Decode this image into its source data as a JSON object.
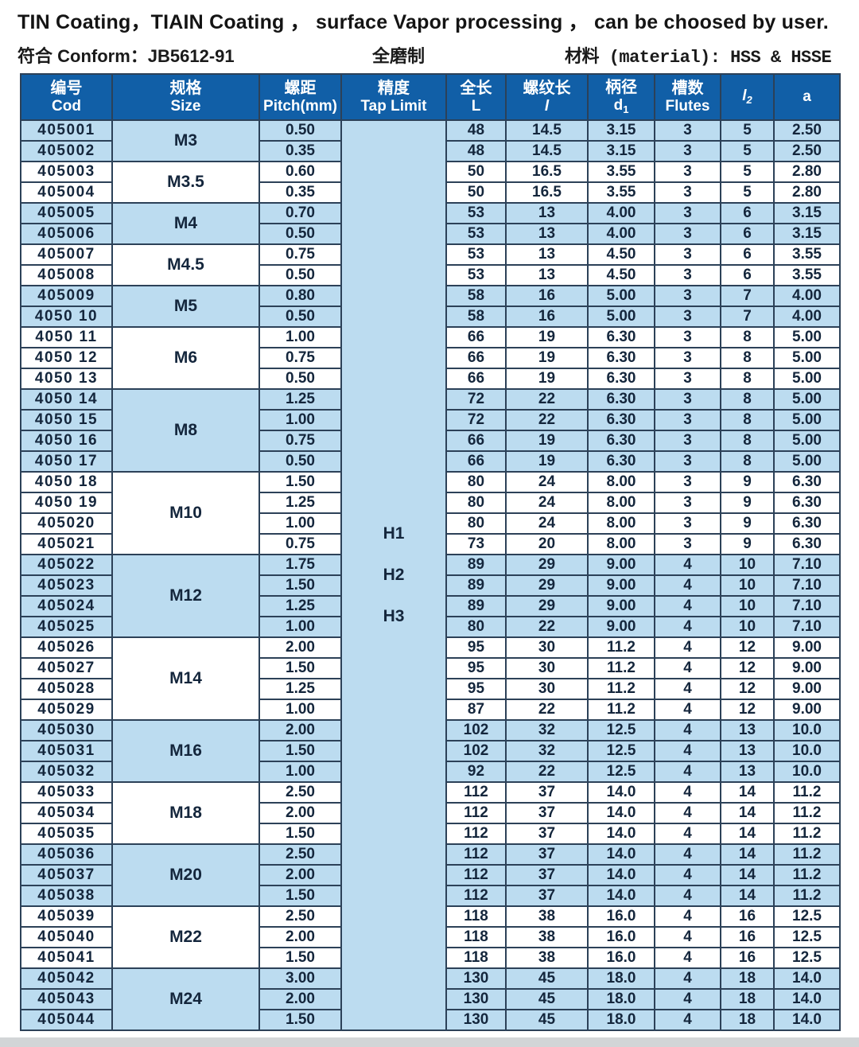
{
  "page_header": {
    "line1": "TIN Coating，TIAIN Coating ， surface Vapor processing ， can be choosed by user.",
    "conform": "符合 Conform：JB5612-91",
    "center": "全磨制",
    "material": "材料 (material): HSS & HSSE"
  },
  "colors": {
    "header_bg": "#115fa7",
    "header_text": "#ffffff",
    "row_blue": "#bcdcf0",
    "row_white": "#ffffff",
    "border": "#2c4158",
    "body_text": "#14263c"
  },
  "table": {
    "columns": [
      {
        "key": "code",
        "cn": "编号",
        "en": "Cod",
        "sub": "",
        "italic": false
      },
      {
        "key": "size",
        "cn": "规格",
        "en": "Size",
        "sub": "",
        "italic": false
      },
      {
        "key": "pitch",
        "cn": "螺距",
        "en": "Pitch(mm)",
        "sub": "",
        "italic": false
      },
      {
        "key": "tap_limit",
        "cn": "精度",
        "en": "Tap Limit",
        "sub": "",
        "italic": false
      },
      {
        "key": "L",
        "cn": "全长",
        "en": "L",
        "sub": "",
        "italic": false
      },
      {
        "key": "l",
        "cn": "螺纹长",
        "en": "l",
        "sub": "",
        "italic": true
      },
      {
        "key": "d1",
        "cn": "柄径",
        "en": "d",
        "sub": "1",
        "italic": false
      },
      {
        "key": "flutes",
        "cn": "槽数",
        "en": "Flutes",
        "sub": "",
        "italic": false
      },
      {
        "key": "l2",
        "cn": "",
        "en": "l",
        "sub": "2",
        "italic": true
      },
      {
        "key": "a",
        "cn": "",
        "en": "a",
        "sub": "",
        "italic": false
      }
    ],
    "tap_limit_values": [
      "H1",
      "H2",
      "H3"
    ],
    "groups": [
      {
        "size": "M3",
        "rows": [
          {
            "code": "405001",
            "pitch": "0.50",
            "L": "48",
            "l": "14.5",
            "d1": "3.15",
            "flutes": "3",
            "l2": "5",
            "a": "2.50"
          },
          {
            "code": "405002",
            "pitch": "0.35",
            "L": "48",
            "l": "14.5",
            "d1": "3.15",
            "flutes": "3",
            "l2": "5",
            "a": "2.50"
          }
        ]
      },
      {
        "size": "M3.5",
        "rows": [
          {
            "code": "405003",
            "pitch": "0.60",
            "L": "50",
            "l": "16.5",
            "d1": "3.55",
            "flutes": "3",
            "l2": "5",
            "a": "2.80"
          },
          {
            "code": "405004",
            "pitch": "0.35",
            "L": "50",
            "l": "16.5",
            "d1": "3.55",
            "flutes": "3",
            "l2": "5",
            "a": "2.80"
          }
        ]
      },
      {
        "size": "M4",
        "rows": [
          {
            "code": "405005",
            "pitch": "0.70",
            "L": "53",
            "l": "13",
            "d1": "4.00",
            "flutes": "3",
            "l2": "6",
            "a": "3.15"
          },
          {
            "code": "405006",
            "pitch": "0.50",
            "L": "53",
            "l": "13",
            "d1": "4.00",
            "flutes": "3",
            "l2": "6",
            "a": "3.15"
          }
        ]
      },
      {
        "size": "M4.5",
        "rows": [
          {
            "code": "405007",
            "pitch": "0.75",
            "L": "53",
            "l": "13",
            "d1": "4.50",
            "flutes": "3",
            "l2": "6",
            "a": "3.55"
          },
          {
            "code": "405008",
            "pitch": "0.50",
            "L": "53",
            "l": "13",
            "d1": "4.50",
            "flutes": "3",
            "l2": "6",
            "a": "3.55"
          }
        ]
      },
      {
        "size": "M5",
        "rows": [
          {
            "code": "405009",
            "pitch": "0.80",
            "L": "58",
            "l": "16",
            "d1": "5.00",
            "flutes": "3",
            "l2": "7",
            "a": "4.00"
          },
          {
            "code": "4050 10",
            "pitch": "0.50",
            "L": "58",
            "l": "16",
            "d1": "5.00",
            "flutes": "3",
            "l2": "7",
            "a": "4.00"
          }
        ]
      },
      {
        "size": "M6",
        "rows": [
          {
            "code": "4050 11",
            "pitch": "1.00",
            "L": "66",
            "l": "19",
            "d1": "6.30",
            "flutes": "3",
            "l2": "8",
            "a": "5.00"
          },
          {
            "code": "4050 12",
            "pitch": "0.75",
            "L": "66",
            "l": "19",
            "d1": "6.30",
            "flutes": "3",
            "l2": "8",
            "a": "5.00"
          },
          {
            "code": "4050 13",
            "pitch": "0.50",
            "L": "66",
            "l": "19",
            "d1": "6.30",
            "flutes": "3",
            "l2": "8",
            "a": "5.00"
          }
        ]
      },
      {
        "size": "M8",
        "rows": [
          {
            "code": "4050 14",
            "pitch": "1.25",
            "L": "72",
            "l": "22",
            "d1": "6.30",
            "flutes": "3",
            "l2": "8",
            "a": "5.00"
          },
          {
            "code": "4050 15",
            "pitch": "1.00",
            "L": "72",
            "l": "22",
            "d1": "6.30",
            "flutes": "3",
            "l2": "8",
            "a": "5.00"
          },
          {
            "code": "4050 16",
            "pitch": "0.75",
            "L": "66",
            "l": "19",
            "d1": "6.30",
            "flutes": "3",
            "l2": "8",
            "a": "5.00"
          },
          {
            "code": "4050 17",
            "pitch": "0.50",
            "L": "66",
            "l": "19",
            "d1": "6.30",
            "flutes": "3",
            "l2": "8",
            "a": "5.00"
          }
        ]
      },
      {
        "size": "M10",
        "rows": [
          {
            "code": "4050 18",
            "pitch": "1.50",
            "L": "80",
            "l": "24",
            "d1": "8.00",
            "flutes": "3",
            "l2": "9",
            "a": "6.30"
          },
          {
            "code": "4050 19",
            "pitch": "1.25",
            "L": "80",
            "l": "24",
            "d1": "8.00",
            "flutes": "3",
            "l2": "9",
            "a": "6.30"
          },
          {
            "code": "405020",
            "pitch": "1.00",
            "L": "80",
            "l": "24",
            "d1": "8.00",
            "flutes": "3",
            "l2": "9",
            "a": "6.30"
          },
          {
            "code": "405021",
            "pitch": "0.75",
            "L": "73",
            "l": "20",
            "d1": "8.00",
            "flutes": "3",
            "l2": "9",
            "a": "6.30"
          }
        ]
      },
      {
        "size": "M12",
        "rows": [
          {
            "code": "405022",
            "pitch": "1.75",
            "L": "89",
            "l": "29",
            "d1": "9.00",
            "flutes": "4",
            "l2": "10",
            "a": "7.10"
          },
          {
            "code": "405023",
            "pitch": "1.50",
            "L": "89",
            "l": "29",
            "d1": "9.00",
            "flutes": "4",
            "l2": "10",
            "a": "7.10"
          },
          {
            "code": "405024",
            "pitch": "1.25",
            "L": "89",
            "l": "29",
            "d1": "9.00",
            "flutes": "4",
            "l2": "10",
            "a": "7.10"
          },
          {
            "code": "405025",
            "pitch": "1.00",
            "L": "80",
            "l": "22",
            "d1": "9.00",
            "flutes": "4",
            "l2": "10",
            "a": "7.10"
          }
        ]
      },
      {
        "size": "M14",
        "rows": [
          {
            "code": "405026",
            "pitch": "2.00",
            "L": "95",
            "l": "30",
            "d1": "11.2",
            "flutes": "4",
            "l2": "12",
            "a": "9.00"
          },
          {
            "code": "405027",
            "pitch": "1.50",
            "L": "95",
            "l": "30",
            "d1": "11.2",
            "flutes": "4",
            "l2": "12",
            "a": "9.00"
          },
          {
            "code": "405028",
            "pitch": "1.25",
            "L": "95",
            "l": "30",
            "d1": "11.2",
            "flutes": "4",
            "l2": "12",
            "a": "9.00"
          },
          {
            "code": "405029",
            "pitch": "1.00",
            "L": "87",
            "l": "22",
            "d1": "11.2",
            "flutes": "4",
            "l2": "12",
            "a": "9.00"
          }
        ]
      },
      {
        "size": "M16",
        "rows": [
          {
            "code": "405030",
            "pitch": "2.00",
            "L": "102",
            "l": "32",
            "d1": "12.5",
            "flutes": "4",
            "l2": "13",
            "a": "10.0"
          },
          {
            "code": "405031",
            "pitch": "1.50",
            "L": "102",
            "l": "32",
            "d1": "12.5",
            "flutes": "4",
            "l2": "13",
            "a": "10.0"
          },
          {
            "code": "405032",
            "pitch": "1.00",
            "L": "92",
            "l": "22",
            "d1": "12.5",
            "flutes": "4",
            "l2": "13",
            "a": "10.0"
          }
        ]
      },
      {
        "size": "M18",
        "rows": [
          {
            "code": "405033",
            "pitch": "2.50",
            "L": "112",
            "l": "37",
            "d1": "14.0",
            "flutes": "4",
            "l2": "14",
            "a": "11.2"
          },
          {
            "code": "405034",
            "pitch": "2.00",
            "L": "112",
            "l": "37",
            "d1": "14.0",
            "flutes": "4",
            "l2": "14",
            "a": "11.2"
          },
          {
            "code": "405035",
            "pitch": "1.50",
            "L": "112",
            "l": "37",
            "d1": "14.0",
            "flutes": "4",
            "l2": "14",
            "a": "11.2"
          }
        ]
      },
      {
        "size": "M20",
        "rows": [
          {
            "code": "405036",
            "pitch": "2.50",
            "L": "112",
            "l": "37",
            "d1": "14.0",
            "flutes": "4",
            "l2": "14",
            "a": "11.2"
          },
          {
            "code": "405037",
            "pitch": "2.00",
            "L": "112",
            "l": "37",
            "d1": "14.0",
            "flutes": "4",
            "l2": "14",
            "a": "11.2"
          },
          {
            "code": "405038",
            "pitch": "1.50",
            "L": "112",
            "l": "37",
            "d1": "14.0",
            "flutes": "4",
            "l2": "14",
            "a": "11.2"
          }
        ]
      },
      {
        "size": "M22",
        "rows": [
          {
            "code": "405039",
            "pitch": "2.50",
            "L": "118",
            "l": "38",
            "d1": "16.0",
            "flutes": "4",
            "l2": "16",
            "a": "12.5"
          },
          {
            "code": "405040",
            "pitch": "2.00",
            "L": "118",
            "l": "38",
            "d1": "16.0",
            "flutes": "4",
            "l2": "16",
            "a": "12.5"
          },
          {
            "code": "405041",
            "pitch": "1.50",
            "L": "118",
            "l": "38",
            "d1": "16.0",
            "flutes": "4",
            "l2": "16",
            "a": "12.5"
          }
        ]
      },
      {
        "size": "M24",
        "rows": [
          {
            "code": "405042",
            "pitch": "3.00",
            "L": "130",
            "l": "45",
            "d1": "18.0",
            "flutes": "4",
            "l2": "18",
            "a": "14.0"
          },
          {
            "code": "405043",
            "pitch": "2.00",
            "L": "130",
            "l": "45",
            "d1": "18.0",
            "flutes": "4",
            "l2": "18",
            "a": "14.0"
          },
          {
            "code": "405044",
            "pitch": "1.50",
            "L": "130",
            "l": "45",
            "d1": "18.0",
            "flutes": "4",
            "l2": "18",
            "a": "14.0"
          }
        ]
      }
    ]
  }
}
